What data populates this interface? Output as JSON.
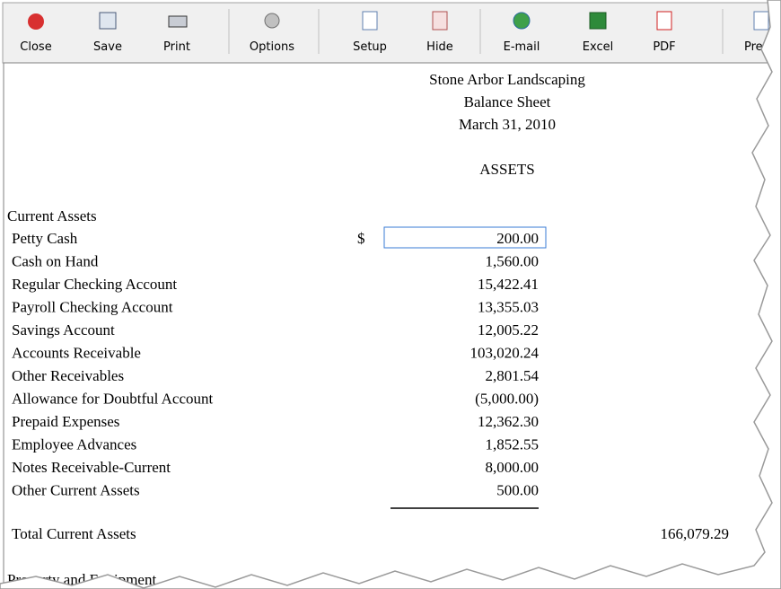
{
  "toolbar": {
    "buttons": [
      "Close",
      "Save",
      "Print",
      "Options",
      "Setup",
      "Hide",
      "E-mail",
      "Excel",
      "PDF",
      "Previ"
    ]
  },
  "report": {
    "company": "Stone Arbor Landscaping",
    "title": "Balance Sheet",
    "date": "March 31, 2010",
    "section": "ASSETS",
    "group": "Current Assets",
    "currency": "$",
    "rows": [
      {
        "label": "Petty Cash",
        "amount": "200.00"
      },
      {
        "label": "Cash on Hand",
        "amount": "1,560.00"
      },
      {
        "label": "Regular Checking Account",
        "amount": "15,422.41"
      },
      {
        "label": "Payroll Checking Account",
        "amount": "13,355.03"
      },
      {
        "label": "Savings Account",
        "amount": "12,005.22"
      },
      {
        "label": "Accounts Receivable",
        "amount": "103,020.24"
      },
      {
        "label": "Other Receivables",
        "amount": "2,801.54"
      },
      {
        "label": "Allowance for Doubtful Account",
        "amount": "(5,000.00)"
      },
      {
        "label": "Prepaid Expenses",
        "amount": "12,362.30"
      },
      {
        "label": "Employee Advances",
        "amount": "1,852.55"
      },
      {
        "label": "Notes Receivable-Current",
        "amount": "8,000.00"
      },
      {
        "label": "Other Current Assets",
        "amount": "500.00"
      }
    ],
    "total": {
      "label": "Total Current Assets",
      "amount": "166,079.29"
    },
    "next_group": "Property and Equipment"
  }
}
